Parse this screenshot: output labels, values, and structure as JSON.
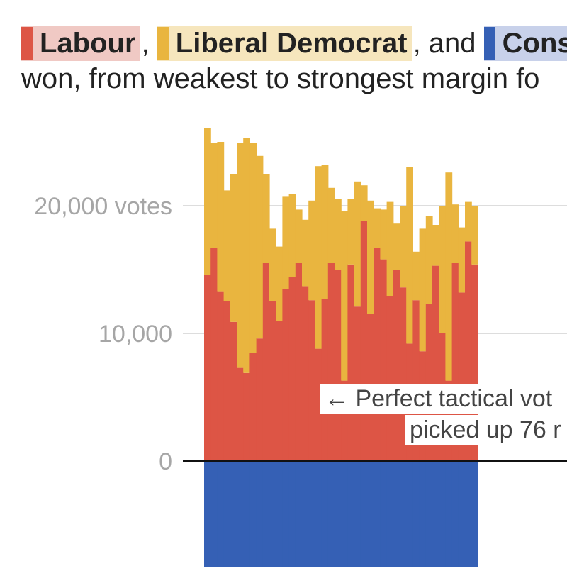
{
  "headline": {
    "party1": "Labour",
    "sep1": ",",
    "party2": "Liberal Democrat",
    "sep2": ", and",
    "party3": "Cons",
    "line2": "won, from weakest to strongest margin fo"
  },
  "colors": {
    "labour": "#dd5545",
    "libdem": "#e9b53f",
    "conservative": "#3560b5",
    "grid": "#dddddd",
    "baseline": "#111111"
  },
  "annotation": {
    "line1": "← Perfect tactical vot",
    "line2": "picked up 76 r"
  },
  "chart_data": {
    "type": "bar",
    "stacked": true,
    "ylim": [
      -8300,
      26000
    ],
    "y_ticks": [
      {
        "value": 20000,
        "label": "20,000 votes"
      },
      {
        "value": 10000,
        "label": "10,000"
      },
      {
        "value": 0,
        "label": "0"
      }
    ],
    "grid": true,
    "series": [
      {
        "name": "Labour",
        "values": [
          14600,
          16700,
          13300,
          12500,
          10900,
          7300,
          6900,
          8500,
          9600,
          15500,
          12500,
          11000,
          13500,
          14400,
          15500,
          13700,
          12600,
          8800,
          12700,
          15500,
          15000,
          6300,
          15400,
          12100,
          18800,
          11500,
          16700,
          15800,
          12900,
          15000,
          13600,
          9200,
          12600,
          8600,
          12300,
          15300,
          10000,
          6300,
          15500,
          13200,
          17200,
          15400
        ]
      },
      {
        "name": "Liberal Democrat",
        "values": [
          11500,
          8200,
          11700,
          8700,
          11600,
          17600,
          18400,
          16400,
          14300,
          7000,
          5700,
          5800,
          7200,
          6500,
          4200,
          5200,
          7800,
          14300,
          10500,
          5900,
          5500,
          13300,
          5100,
          9800,
          2800,
          8900,
          3100,
          3900,
          7400,
          3600,
          6400,
          13800,
          3800,
          9600,
          6900,
          3200,
          10000,
          16300,
          4600,
          5100,
          3100,
          4600
        ]
      },
      {
        "name": "Conservative",
        "values": [
          -8300,
          -8300,
          -8300,
          -8300,
          -8300,
          -8300,
          -8300,
          -8300,
          -8300,
          -8300,
          -8300,
          -8300,
          -8300,
          -8300,
          -8300,
          -8300,
          -8300,
          -8300,
          -8300,
          -8300,
          -8300,
          -8300,
          -8300,
          -8300,
          -8300,
          -8300,
          -8300,
          -8300,
          -8300,
          -8300,
          -8300,
          -8300,
          -8300,
          -8300,
          -8300,
          -8300,
          -8300,
          -8300,
          -8300,
          -8300,
          -8300,
          -8300
        ]
      }
    ]
  }
}
